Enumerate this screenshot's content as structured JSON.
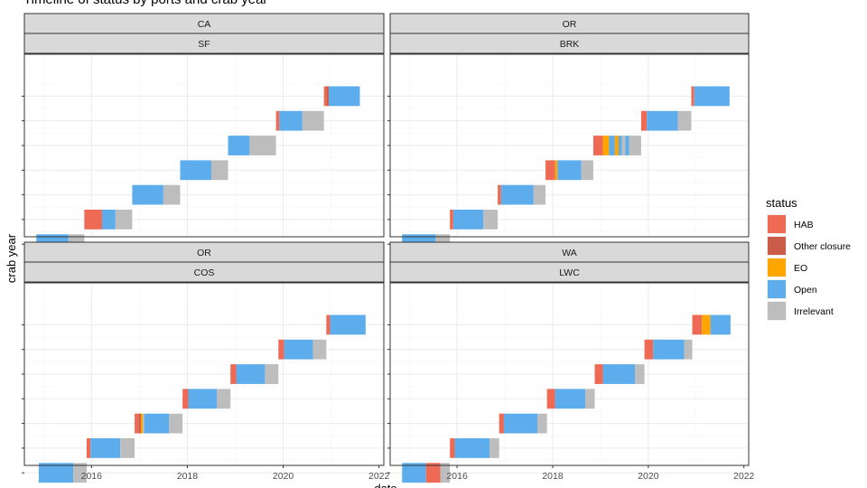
{
  "chart_data": {
    "type": "timeline",
    "title": "Timeline of status by ports and crab year",
    "xlabel": "date",
    "ylabel": "crab year",
    "x_ticks": [
      2016,
      2018,
      2020,
      2022
    ],
    "xlim": [
      2014.6,
      2022.1
    ],
    "ylim": [
      2014.3,
      2021.7
    ],
    "grid": "on",
    "legend": {
      "title": "status",
      "position": "right",
      "items": [
        {
          "label": "HAB",
          "color": "#EF6A55"
        },
        {
          "label": "Other closure",
          "color": "#CC5C4A"
        },
        {
          "label": "EO",
          "color": "#FFA500"
        },
        {
          "label": "Open",
          "color": "#5DADEC"
        },
        {
          "label": "Irrelevant",
          "color": "#BDBDBD"
        }
      ]
    },
    "facets": [
      {
        "state": "CA",
        "port": "SF",
        "segments": [
          {
            "crab_year": 2014,
            "status": "Open",
            "start": 2014.85,
            "end": 2015.52
          },
          {
            "crab_year": 2014,
            "status": "Irrelevant",
            "start": 2015.52,
            "end": 2015.85
          },
          {
            "crab_year": 2015,
            "status": "HAB",
            "start": 2015.85,
            "end": 2016.22
          },
          {
            "crab_year": 2015,
            "status": "Open",
            "start": 2016.22,
            "end": 2016.5
          },
          {
            "crab_year": 2015,
            "status": "Irrelevant",
            "start": 2016.5,
            "end": 2016.85
          },
          {
            "crab_year": 2016,
            "status": "Open",
            "start": 2016.85,
            "end": 2017.5
          },
          {
            "crab_year": 2016,
            "status": "Irrelevant",
            "start": 2017.5,
            "end": 2017.85
          },
          {
            "crab_year": 2017,
            "status": "Open",
            "start": 2017.85,
            "end": 2018.5
          },
          {
            "crab_year": 2017,
            "status": "Irrelevant",
            "start": 2018.5,
            "end": 2018.85
          },
          {
            "crab_year": 2018,
            "status": "Open",
            "start": 2018.85,
            "end": 2019.3
          },
          {
            "crab_year": 2018,
            "status": "Irrelevant",
            "start": 2019.3,
            "end": 2019.85
          },
          {
            "crab_year": 2019,
            "status": "HAB",
            "start": 2019.85,
            "end": 2019.92
          },
          {
            "crab_year": 2019,
            "status": "Open",
            "start": 2019.92,
            "end": 2020.4
          },
          {
            "crab_year": 2019,
            "status": "Irrelevant",
            "start": 2020.4,
            "end": 2020.85
          },
          {
            "crab_year": 2020,
            "status": "HAB",
            "start": 2020.85,
            "end": 2020.9
          },
          {
            "crab_year": 2020,
            "status": "Other closure",
            "start": 2020.9,
            "end": 2020.95
          },
          {
            "crab_year": 2020,
            "status": "Open",
            "start": 2020.95,
            "end": 2021.6
          }
        ]
      },
      {
        "state": "OR",
        "port": "BRK",
        "segments": [
          {
            "crab_year": 2014,
            "status": "Open",
            "start": 2014.85,
            "end": 2015.55
          },
          {
            "crab_year": 2014,
            "status": "Irrelevant",
            "start": 2015.55,
            "end": 2015.85
          },
          {
            "crab_year": 2015,
            "status": "HAB",
            "start": 2015.85,
            "end": 2015.92
          },
          {
            "crab_year": 2015,
            "status": "Open",
            "start": 2015.92,
            "end": 2016.55
          },
          {
            "crab_year": 2015,
            "status": "Irrelevant",
            "start": 2016.55,
            "end": 2016.85
          },
          {
            "crab_year": 2016,
            "status": "HAB",
            "start": 2016.85,
            "end": 2016.92
          },
          {
            "crab_year": 2016,
            "status": "Open",
            "start": 2016.92,
            "end": 2017.6
          },
          {
            "crab_year": 2016,
            "status": "Irrelevant",
            "start": 2017.6,
            "end": 2017.85
          },
          {
            "crab_year": 2017,
            "status": "HAB",
            "start": 2017.85,
            "end": 2018.05
          },
          {
            "crab_year": 2017,
            "status": "EO",
            "start": 2018.05,
            "end": 2018.1
          },
          {
            "crab_year": 2017,
            "status": "Open",
            "start": 2018.1,
            "end": 2018.6
          },
          {
            "crab_year": 2017,
            "status": "Irrelevant",
            "start": 2018.6,
            "end": 2018.85
          },
          {
            "crab_year": 2018,
            "status": "HAB",
            "start": 2018.85,
            "end": 2019.05
          },
          {
            "crab_year": 2018,
            "status": "EO",
            "start": 2019.05,
            "end": 2019.18
          },
          {
            "crab_year": 2018,
            "status": "Open",
            "start": 2019.18,
            "end": 2019.3
          },
          {
            "crab_year": 2018,
            "status": "EO",
            "start": 2019.3,
            "end": 2019.38
          },
          {
            "crab_year": 2018,
            "status": "Open",
            "start": 2019.38,
            "end": 2019.45
          },
          {
            "crab_year": 2018,
            "status": "Irrelevant",
            "start": 2019.45,
            "end": 2019.52
          },
          {
            "crab_year": 2018,
            "status": "Open",
            "start": 2019.52,
            "end": 2019.6
          },
          {
            "crab_year": 2018,
            "status": "Irrelevant",
            "start": 2019.6,
            "end": 2019.85
          },
          {
            "crab_year": 2019,
            "status": "HAB",
            "start": 2019.85,
            "end": 2019.97
          },
          {
            "crab_year": 2019,
            "status": "Open",
            "start": 2019.97,
            "end": 2020.62
          },
          {
            "crab_year": 2019,
            "status": "Irrelevant",
            "start": 2020.62,
            "end": 2020.9
          },
          {
            "crab_year": 2020,
            "status": "HAB",
            "start": 2020.9,
            "end": 2020.96
          },
          {
            "crab_year": 2020,
            "status": "Open",
            "start": 2020.96,
            "end": 2021.7
          }
        ]
      },
      {
        "state": "OR",
        "port": "COS",
        "segments": [
          {
            "crab_year": 2014,
            "status": "Open",
            "start": 2014.9,
            "end": 2015.62
          },
          {
            "crab_year": 2014,
            "status": "Irrelevant",
            "start": 2015.62,
            "end": 2015.9
          },
          {
            "crab_year": 2015,
            "status": "HAB",
            "start": 2015.9,
            "end": 2015.98
          },
          {
            "crab_year": 2015,
            "status": "Open",
            "start": 2015.98,
            "end": 2016.6
          },
          {
            "crab_year": 2015,
            "status": "Irrelevant",
            "start": 2016.6,
            "end": 2016.9
          },
          {
            "crab_year": 2016,
            "status": "HAB",
            "start": 2016.9,
            "end": 2016.98
          },
          {
            "crab_year": 2016,
            "status": "Other closure",
            "start": 2016.98,
            "end": 2017.03
          },
          {
            "crab_year": 2016,
            "status": "EO",
            "start": 2017.03,
            "end": 2017.07
          },
          {
            "crab_year": 2016,
            "status": "Irrelevant",
            "start": 2017.07,
            "end": 2017.1
          },
          {
            "crab_year": 2016,
            "status": "Open",
            "start": 2017.1,
            "end": 2017.62
          },
          {
            "crab_year": 2016,
            "status": "Irrelevant",
            "start": 2017.62,
            "end": 2017.9
          },
          {
            "crab_year": 2017,
            "status": "HAB",
            "start": 2017.9,
            "end": 2018.02
          },
          {
            "crab_year": 2017,
            "status": "Open",
            "start": 2018.02,
            "end": 2018.62
          },
          {
            "crab_year": 2017,
            "status": "Irrelevant",
            "start": 2018.62,
            "end": 2018.9
          },
          {
            "crab_year": 2018,
            "status": "HAB",
            "start": 2018.9,
            "end": 2019.02
          },
          {
            "crab_year": 2018,
            "status": "Open",
            "start": 2019.02,
            "end": 2019.62
          },
          {
            "crab_year": 2018,
            "status": "Irrelevant",
            "start": 2019.62,
            "end": 2019.9
          },
          {
            "crab_year": 2019,
            "status": "HAB",
            "start": 2019.9,
            "end": 2020.02
          },
          {
            "crab_year": 2019,
            "status": "Open",
            "start": 2020.02,
            "end": 2020.62
          },
          {
            "crab_year": 2019,
            "status": "Irrelevant",
            "start": 2020.62,
            "end": 2020.9
          },
          {
            "crab_year": 2020,
            "status": "HAB",
            "start": 2020.9,
            "end": 2020.98
          },
          {
            "crab_year": 2020,
            "status": "Open",
            "start": 2020.98,
            "end": 2021.72
          }
        ]
      },
      {
        "state": "WA",
        "port": "LWC",
        "segments": [
          {
            "crab_year": 2014,
            "status": "Open",
            "start": 2014.85,
            "end": 2015.35
          },
          {
            "crab_year": 2014,
            "status": "HAB",
            "start": 2015.35,
            "end": 2015.65
          },
          {
            "crab_year": 2014,
            "status": "Irrelevant",
            "start": 2015.65,
            "end": 2015.85
          },
          {
            "crab_year": 2015,
            "status": "HAB",
            "start": 2015.85,
            "end": 2015.95
          },
          {
            "crab_year": 2015,
            "status": "Open",
            "start": 2015.95,
            "end": 2016.68
          },
          {
            "crab_year": 2015,
            "status": "Irrelevant",
            "start": 2016.68,
            "end": 2016.88
          },
          {
            "crab_year": 2016,
            "status": "HAB",
            "start": 2016.88,
            "end": 2016.98
          },
          {
            "crab_year": 2016,
            "status": "Open",
            "start": 2016.98,
            "end": 2017.68
          },
          {
            "crab_year": 2016,
            "status": "Irrelevant",
            "start": 2017.68,
            "end": 2017.88
          },
          {
            "crab_year": 2017,
            "status": "HAB",
            "start": 2017.88,
            "end": 2018.05
          },
          {
            "crab_year": 2017,
            "status": "Open",
            "start": 2018.05,
            "end": 2018.68
          },
          {
            "crab_year": 2017,
            "status": "Irrelevant",
            "start": 2018.68,
            "end": 2018.88
          },
          {
            "crab_year": 2018,
            "status": "HAB",
            "start": 2018.88,
            "end": 2019.05
          },
          {
            "crab_year": 2018,
            "status": "Open",
            "start": 2019.05,
            "end": 2019.72
          },
          {
            "crab_year": 2018,
            "status": "Irrelevant",
            "start": 2019.72,
            "end": 2019.92
          },
          {
            "crab_year": 2019,
            "status": "HAB",
            "start": 2019.92,
            "end": 2020.1
          },
          {
            "crab_year": 2019,
            "status": "Open",
            "start": 2020.1,
            "end": 2020.75
          },
          {
            "crab_year": 2019,
            "status": "Irrelevant",
            "start": 2020.75,
            "end": 2020.92
          },
          {
            "crab_year": 2020,
            "status": "HAB",
            "start": 2020.92,
            "end": 2021.12
          },
          {
            "crab_year": 2020,
            "status": "EO",
            "start": 2021.12,
            "end": 2021.3
          },
          {
            "crab_year": 2020,
            "status": "Open",
            "start": 2021.3,
            "end": 2021.72
          }
        ]
      }
    ]
  }
}
